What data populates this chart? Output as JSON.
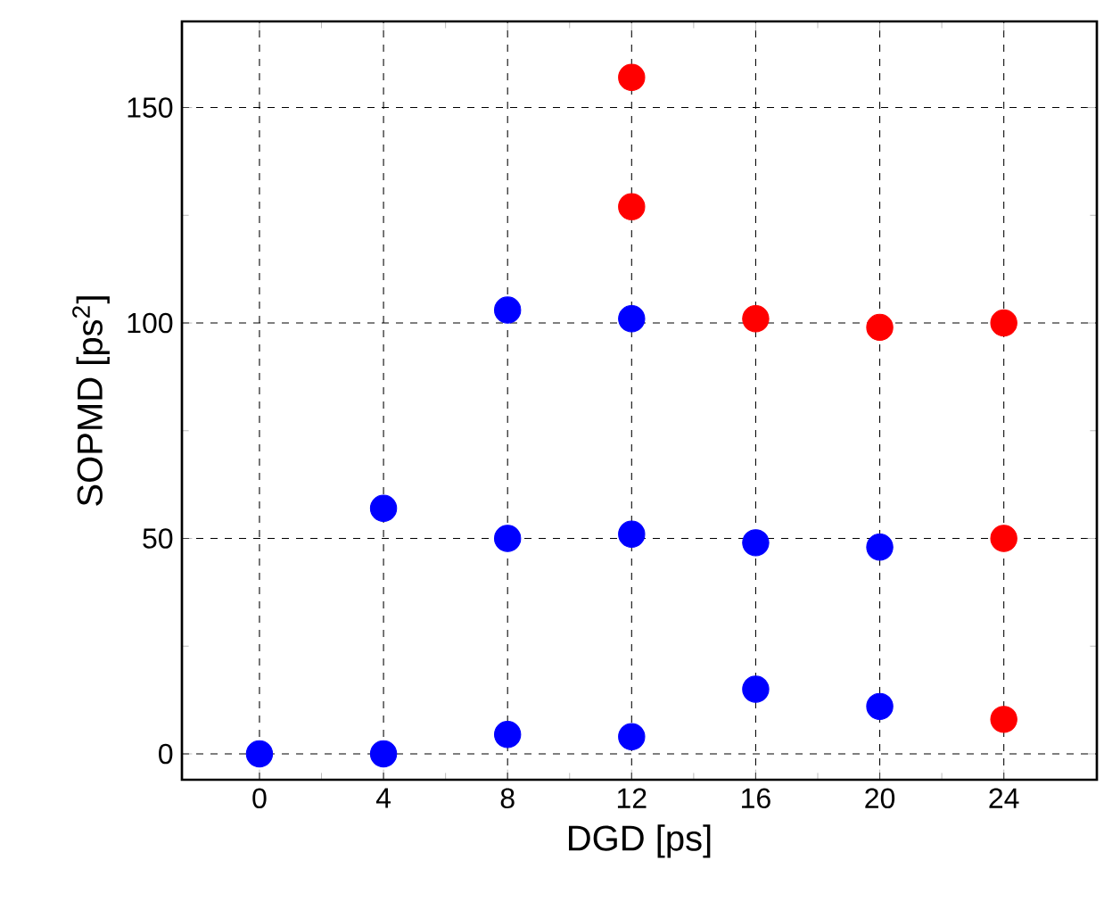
{
  "chart_data": {
    "type": "scatter",
    "xlabel": "DGD [ps]",
    "ylabel": "SOPMD [ps$^{2}$]",
    "xlim": [
      -2.5,
      27
    ],
    "ylim": [
      -6,
      170
    ],
    "xticks": [
      0,
      4,
      8,
      12,
      16,
      20,
      24
    ],
    "yticks": [
      0,
      50,
      100,
      150
    ],
    "grid": true,
    "marker": "circle",
    "series": [
      {
        "color": "#0000ff",
        "x": [
          0,
          4,
          4,
          8,
          8,
          8,
          12,
          12,
          12,
          16,
          16,
          20,
          20
        ],
        "values": [
          0,
          0,
          57,
          4.5,
          50,
          103,
          4,
          51,
          101,
          15,
          49,
          11,
          48
        ]
      },
      {
        "color": "#ff0000",
        "x": [
          12,
          12,
          16,
          20,
          24,
          24,
          24
        ],
        "values": [
          157,
          127,
          101,
          99,
          100,
          50,
          8
        ]
      }
    ]
  }
}
